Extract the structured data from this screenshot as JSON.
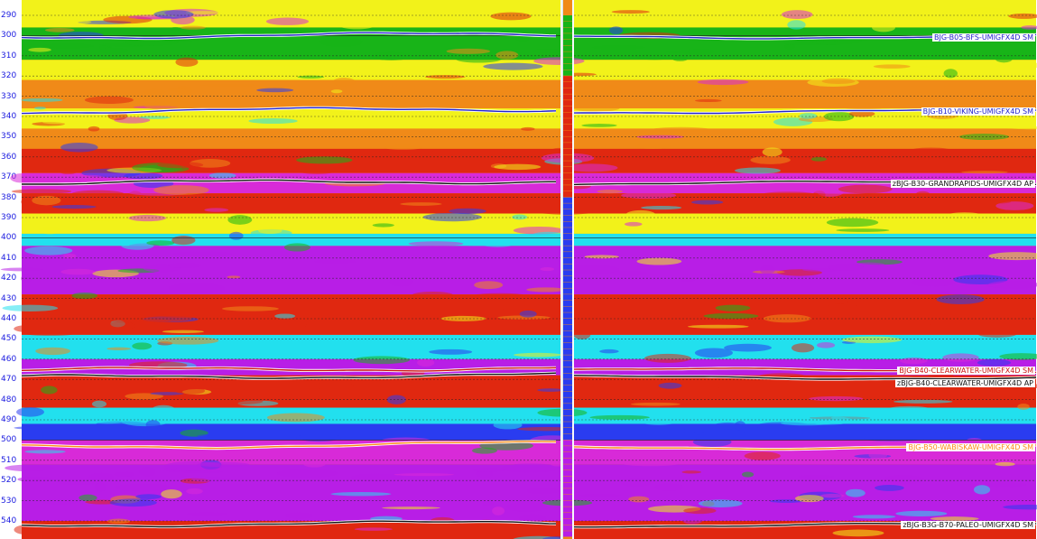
{
  "depth_axis": {
    "ticks": [
      "290",
      "300",
      "310",
      "320",
      "330",
      "340",
      "350",
      "360",
      "370",
      "380",
      "390",
      "400",
      "410",
      "420",
      "430",
      "440",
      "450",
      "460",
      "470",
      "480",
      "490",
      "500",
      "510",
      "520",
      "530",
      "540"
    ]
  },
  "horizons": [
    {
      "label": "BJG-B05-BFS-UMIGFX4D SM",
      "color": "#2222cc"
    },
    {
      "label": "BJG-B10-VIKING-UMIGFX4D SM",
      "color": "#2222cc"
    },
    {
      "label": "zBJG-B30-GRANDRAPIDS-UMIGFX4D AP",
      "color": "#111111"
    },
    {
      "label": "BJG-B40-CLEARWATER-UMIGFX4D SM",
      "color": "#cc1111"
    },
    {
      "label": "zBJG-B40-CLEARWATER-UMIGFX4D AP",
      "color": "#111111"
    },
    {
      "label": "BJG-B50-WABISKAW-UMIGFX4D SM",
      "color": "#ff8c1a"
    },
    {
      "label": "zBJG-B3G-B70-PALEO-UMIGFX4D SM",
      "color": "#111111"
    }
  ],
  "colors": {
    "green": "#18b418",
    "yellow": "#f2f21a",
    "orange": "#f08a18",
    "red": "#e02810",
    "cyan": "#22e0ee",
    "blue": "#2a3cf0",
    "magenta": "#d82ad8",
    "purple": "#b81ee6"
  }
}
